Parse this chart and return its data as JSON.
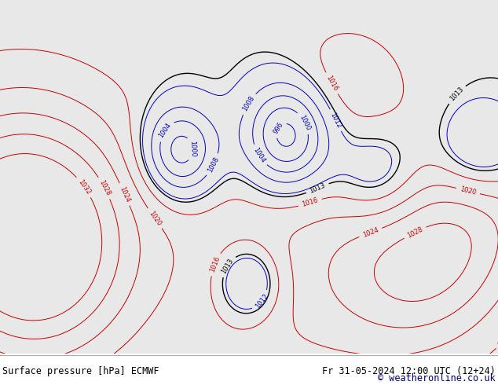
{
  "title_left": "Surface pressure [hPa] ECMWF",
  "title_right": "Fr 31-05-2024 12:00 UTC (12+24)",
  "copyright": "© weatheronline.co.uk",
  "bg_color": "#ffffff",
  "ocean_color": "#e8e8e8",
  "land_color": "#c8e8b0",
  "gray_color": "#b0b0b0",
  "footer_text_color": "#000000",
  "footer_text_color2": "#000080",
  "contour_black": "#000000",
  "contour_blue": "#0000cc",
  "contour_red": "#cc0000",
  "extent": [
    -180,
    -50,
    15,
    80
  ],
  "base_pressure": 1013.0,
  "pressure_interval": 4,
  "pressure_min": 984,
  "pressure_max": 1032
}
